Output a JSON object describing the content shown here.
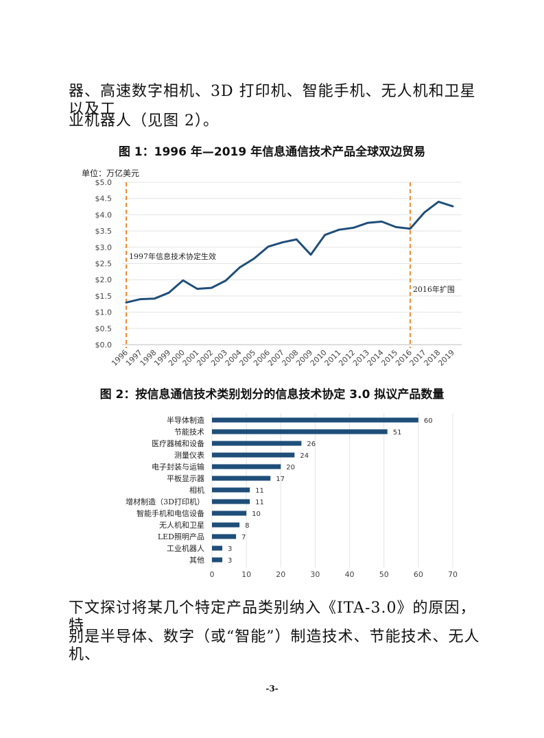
{
  "text": {
    "para_top_line1": "器、高速数字相机、3D 打印机、智能手机、无人机和卫星以及工",
    "para_top_line2": "业机器人（见图 2）。",
    "para_bottom_line1": "下文探讨将某几个特定产品类别纳入《ITA-3.0》的原因，特",
    "para_bottom_line2": "别是半导体、数字（或“智能”）制造技术、节能技术、无人机、",
    "page_number": "-3-"
  },
  "chart_data": [
    {
      "type": "line",
      "title": "图 1：1996 年—2019 年信息通信技术产品全球双边贸易",
      "unit_label": "单位：万亿美元",
      "x": [
        "1996",
        "1997",
        "1998",
        "1999",
        "2000",
        "2001",
        "2002",
        "2003",
        "2004",
        "2005",
        "2006",
        "2007",
        "2008",
        "2009",
        "2010",
        "2011",
        "2012",
        "2013",
        "2014",
        "2015",
        "2016",
        "2017",
        "2018",
        "2019"
      ],
      "y": [
        1.3,
        1.4,
        1.42,
        1.6,
        1.98,
        1.72,
        1.75,
        1.97,
        2.38,
        2.65,
        3.02,
        3.15,
        3.24,
        2.77,
        3.38,
        3.54,
        3.6,
        3.75,
        3.79,
        3.62,
        3.57,
        4.07,
        4.4,
        4.26
      ],
      "ylim": [
        0,
        5
      ],
      "ytick_labels": [
        "$0.0",
        "$0.5",
        "$1.0",
        "$1.5",
        "$2.0",
        "$2.5",
        "$3.0",
        "$3.5",
        "$4.0",
        "$4.5",
        "$5.0"
      ],
      "line_color": "#1f4e79",
      "grid": true,
      "annotations": [
        {
          "x": "1996",
          "text": "1997年信息技术协定生效",
          "color": "#f28a30"
        },
        {
          "x": "2016",
          "text": "2016年扩围",
          "color": "#f28a30"
        }
      ]
    },
    {
      "type": "bar",
      "orientation": "horizontal",
      "title": "图 2：按信息通信技术类别划分的信息技术协定 3.0 拟议产品数量",
      "categories": [
        "半导体制造",
        "节能技术",
        "医疗器械和设备",
        "测量仪表",
        "电子封装与运输",
        "平板显示器",
        "相机",
        "增材制造（3D打印机）",
        "智能手机和电信设备",
        "无人机和卫星",
        "LED照明产品",
        "工业机器人",
        "其他"
      ],
      "values": [
        60,
        51,
        26,
        24,
        20,
        17,
        11,
        11,
        10,
        8,
        7,
        3,
        3
      ],
      "xlim": [
        0,
        70
      ],
      "xtick_labels": [
        "0",
        "10",
        "20",
        "30",
        "40",
        "50",
        "60",
        "70"
      ],
      "bar_color": "#1f4e79",
      "grid": true
    }
  ]
}
